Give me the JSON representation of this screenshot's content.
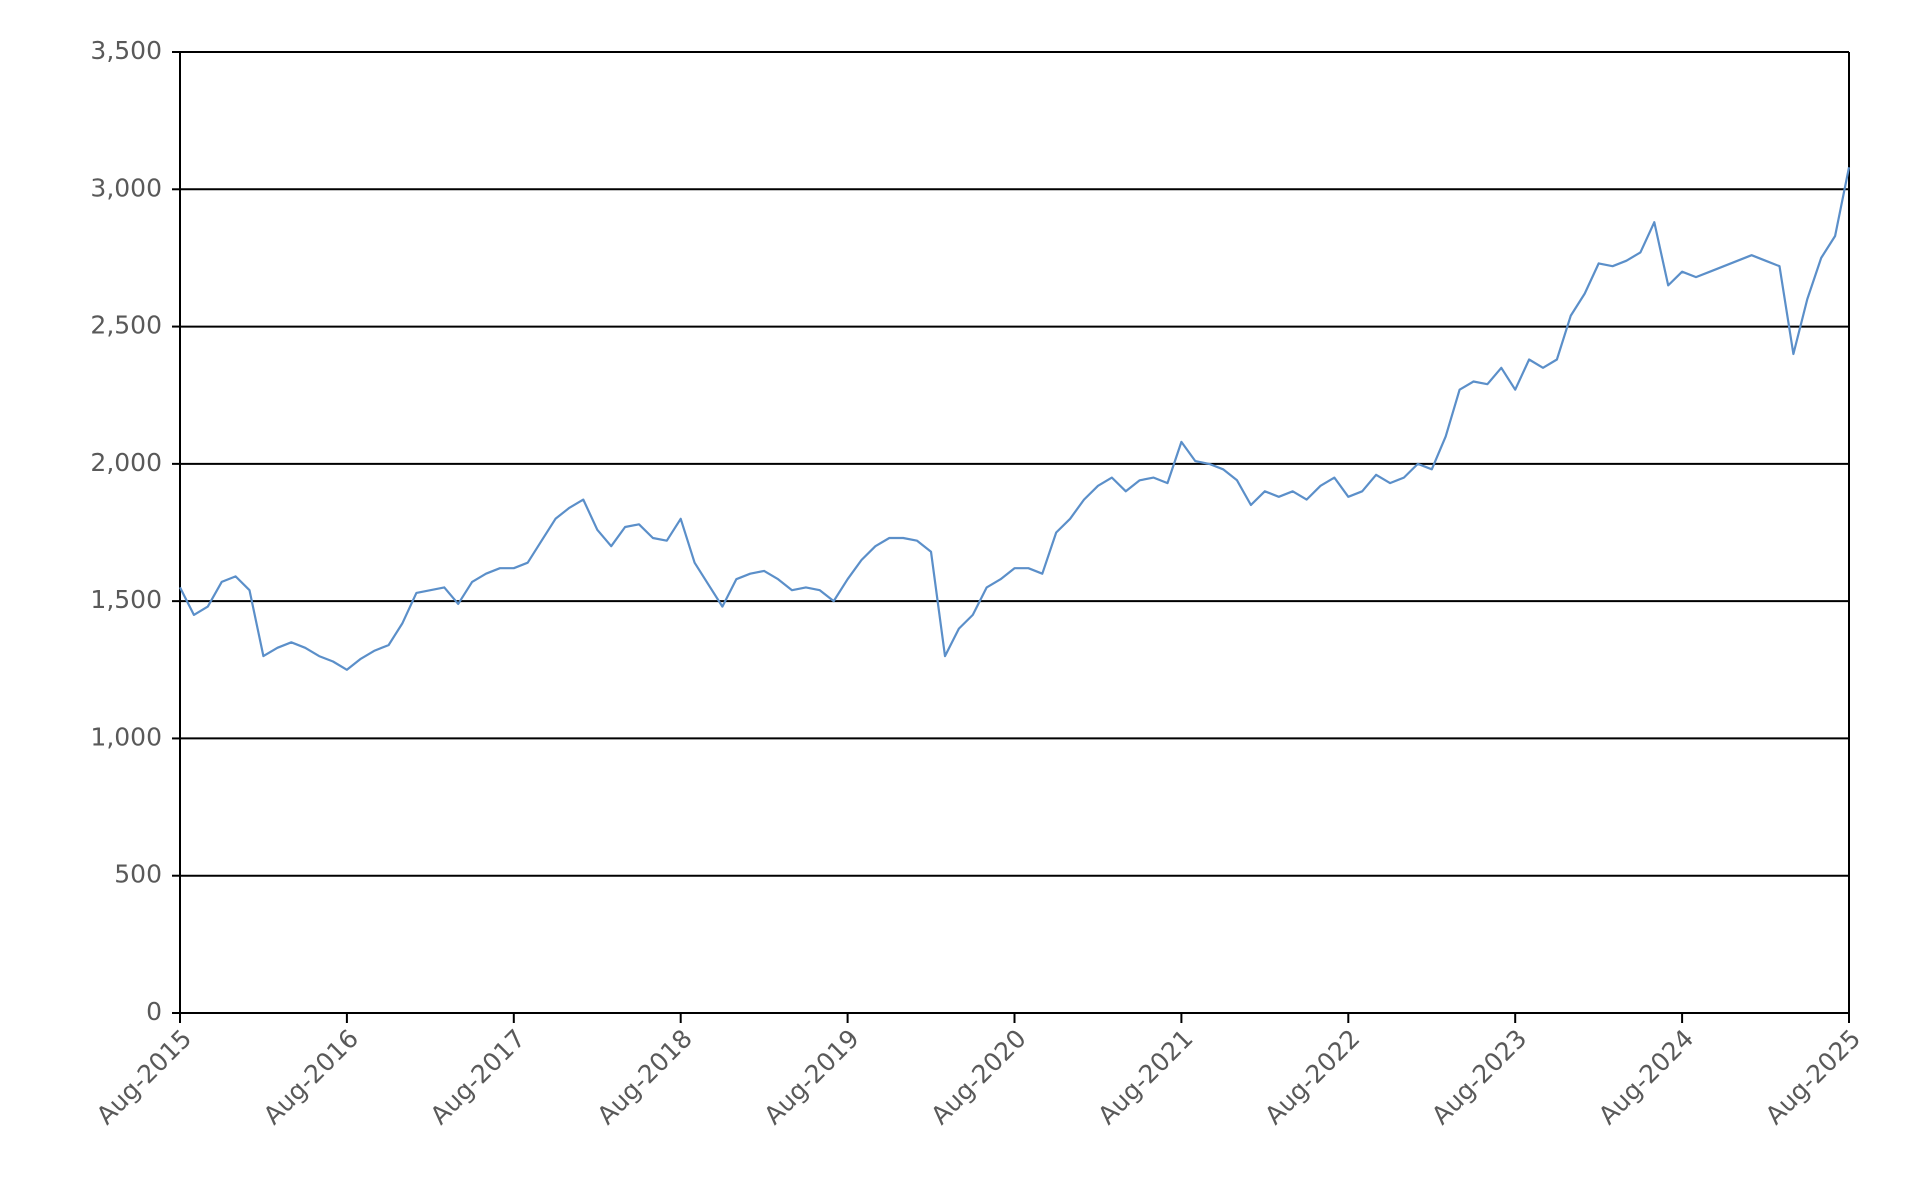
{
  "chart_data": {
    "type": "line",
    "categories": [
      "Aug-2015",
      null,
      null,
      null,
      null,
      null,
      null,
      null,
      null,
      null,
      null,
      null,
      "Aug-2016",
      null,
      null,
      null,
      null,
      null,
      null,
      null,
      null,
      null,
      null,
      null,
      "Aug-2017",
      null,
      null,
      null,
      null,
      null,
      null,
      null,
      null,
      null,
      null,
      null,
      "Aug-2018",
      null,
      null,
      null,
      null,
      null,
      null,
      null,
      null,
      null,
      null,
      null,
      "Aug-2019",
      null,
      null,
      null,
      null,
      null,
      null,
      null,
      null,
      null,
      null,
      null,
      "Aug-2020",
      null,
      null,
      null,
      null,
      null,
      null,
      null,
      null,
      null,
      null,
      null,
      "Aug-2021",
      null,
      null,
      null,
      null,
      null,
      null,
      null,
      null,
      null,
      null,
      null,
      "Aug-2022",
      null,
      null,
      null,
      null,
      null,
      null,
      null,
      null,
      null,
      null,
      null,
      "Aug-2023",
      null,
      null,
      null,
      null,
      null,
      null,
      null,
      null,
      null,
      null,
      null,
      "Aug-2024",
      null,
      null,
      null,
      null,
      null,
      null,
      null,
      null,
      null,
      null,
      null,
      "Aug-2025"
    ],
    "series": [
      {
        "color": "#5b8fc9",
        "values": [
          1550,
          1450,
          1480,
          1570,
          1590,
          1540,
          1300,
          1330,
          1350,
          1330,
          1300,
          1280,
          1250,
          1290,
          1320,
          1340,
          1420,
          1530,
          1540,
          1550,
          1490,
          1570,
          1600,
          1620,
          1620,
          1640,
          1720,
          1800,
          1840,
          1870,
          1760,
          1700,
          1770,
          1780,
          1730,
          1720,
          1800,
          1640,
          1560,
          1480,
          1580,
          1600,
          1610,
          1580,
          1540,
          1550,
          1540,
          1500,
          1580,
          1650,
          1700,
          1730,
          1730,
          1720,
          1680,
          1300,
          1400,
          1450,
          1550,
          1580,
          1620,
          1620,
          1600,
          1750,
          1800,
          1870,
          1920,
          1950,
          1900,
          1940,
          1950,
          1930,
          2080,
          2010,
          2000,
          1980,
          1940,
          1850,
          1900,
          1880,
          1900,
          1870,
          1920,
          1950,
          1880,
          1900,
          1960,
          1930,
          1950,
          2000,
          1980,
          2100,
          2270,
          2300,
          2290,
          2350,
          2270,
          2380,
          2350,
          2380,
          2540,
          2620,
          2730,
          2720,
          2740,
          2770,
          2880,
          2650,
          2700,
          2680,
          2700,
          2720,
          2740,
          2760,
          2740,
          2720,
          2400,
          2600,
          2750,
          2830,
          3080
        ]
      }
    ],
    "ylim": [
      0,
      3500
    ],
    "yticks": [
      0,
      500,
      {
        "value": 1000,
        "label": "1,000"
      },
      {
        "value": 1500,
        "label": "1,500"
      },
      {
        "value": 2000,
        "label": "2,000"
      },
      {
        "value": 2500,
        "label": "2,500"
      },
      {
        "value": 3000,
        "label": "3,000"
      },
      {
        "value": 3500,
        "label": "3,500"
      }
    ],
    "grid": true
  }
}
